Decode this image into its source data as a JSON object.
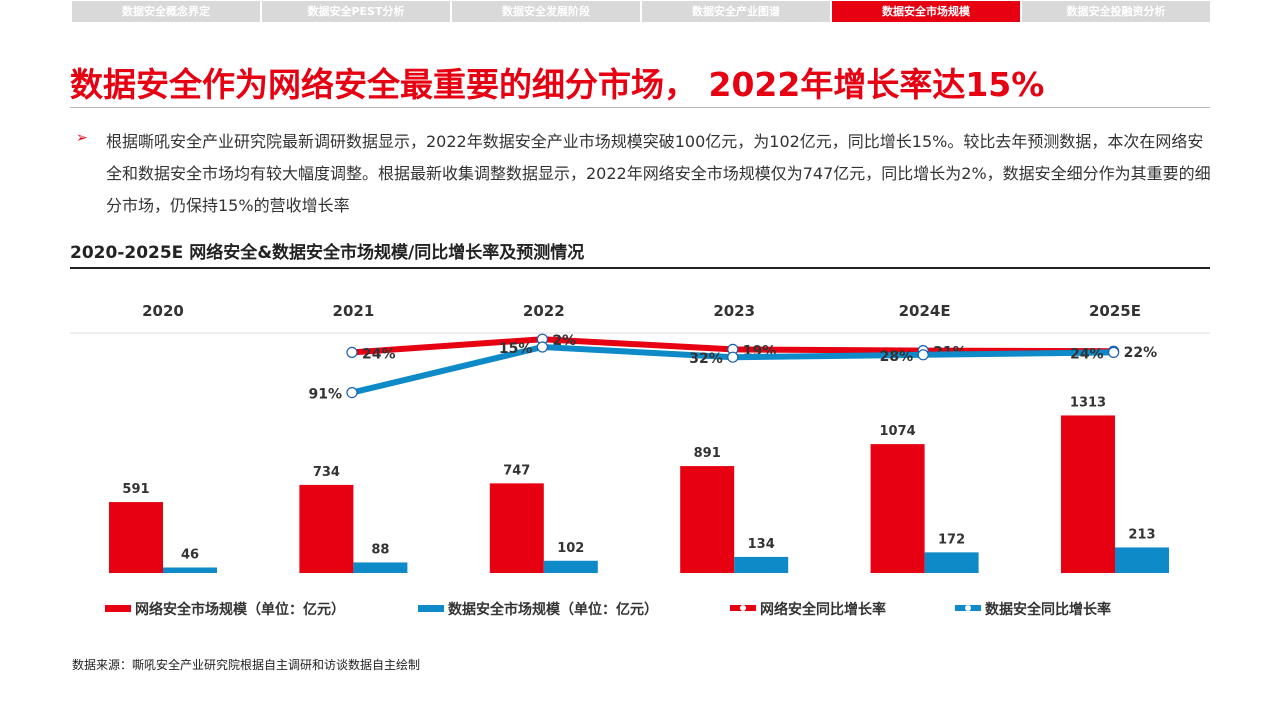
{
  "nav": {
    "tabs": [
      "数据安全概念界定",
      "数据安全PEST分析",
      "数据安全发展阶段",
      "数据安全产业图谱",
      "数据安全市场规模",
      "数据安全投融资分析"
    ],
    "active": 4
  },
  "title": "数据安全作为网络安全最重要的细分市场， 2022年增长率达15%",
  "bullet": "➢",
  "paragraph": "根据嘶吼安全产业研究院最新调研数据显示，2022年数据安全产业市场规模突破100亿元，为102亿元，同比增长15%。较比去年预测数据，本次在网络安全和数据安全市场均有较大幅度调整。根据最新收集调整数据显示，2022年网络安全市场规模仅为747亿元，同比增长为2%，数据安全细分作为其重要的细分市场，仍保持15%的营收增长率",
  "source": "数据来源：嘶吼安全产业研究院根据自主调研和访谈数据自主绘制",
  "chart_data": {
    "type": "bar+line",
    "title": "2020-2025E 网络安全&数据安全市场规模/同比增长率及预测情况",
    "categories": [
      "2020",
      "2021",
      "2022",
      "2023",
      "2024E",
      "2025E"
    ],
    "series": [
      {
        "name": "网络安全市场规模（单位：亿元）",
        "type": "bar",
        "color": "#e60012",
        "values": [
          591,
          734,
          747,
          891,
          1074,
          1313
        ]
      },
      {
        "name": "数据安全市场规模（单位：亿元）",
        "type": "bar",
        "color": "#0e8ac8",
        "values": [
          46,
          88,
          102,
          134,
          172,
          213
        ]
      },
      {
        "name": "网络安全同比增长率",
        "type": "line",
        "color": "#e60012",
        "values": [
          null,
          24,
          2,
          19,
          21,
          22
        ],
        "labels": [
          "",
          "24%",
          "2%",
          "19%",
          "21%",
          "22%"
        ]
      },
      {
        "name": "数据安全同比增长率",
        "type": "line",
        "color": "#0e8ac8",
        "values": [
          null,
          91,
          15,
          32,
          28,
          24
        ],
        "labels": [
          "",
          "91%",
          "15%",
          "32%",
          "28%",
          "24%"
        ]
      }
    ],
    "legend": "bottom"
  }
}
